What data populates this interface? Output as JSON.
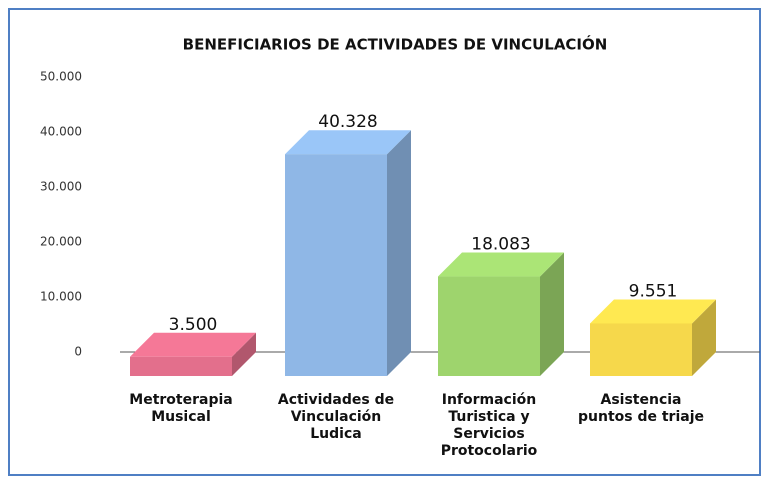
{
  "chart_data": {
    "type": "bar3d",
    "title": "BENEFICIARIOS DE ACTIVIDADES DE VINCULACIÓN",
    "categories": [
      "Metroterapia\nMusical",
      "Actividades de\nVinculación\nLudica",
      "Información\nTuristica y\nServicios\nProtocolario",
      "Asistencia\npuntos de triaje"
    ],
    "values": [
      3500,
      40328,
      18083,
      9551
    ],
    "value_labels": [
      "3.500",
      "40.328",
      "18.083",
      "9.551"
    ],
    "colors": [
      "#e36f8c",
      "#8fb7e6",
      "#9ed46d",
      "#f6d84b"
    ],
    "ylim": [
      0,
      50000
    ],
    "yticks": [
      0,
      {
        "value": 10000,
        "label": "10.000"
      },
      {
        "value": 20000,
        "label": "20.000"
      },
      {
        "value": 30000,
        "label": "30.000"
      },
      {
        "value": 40000,
        "label": "40.000"
      },
      {
        "value": 50000,
        "label": "50.000"
      }
    ]
  }
}
